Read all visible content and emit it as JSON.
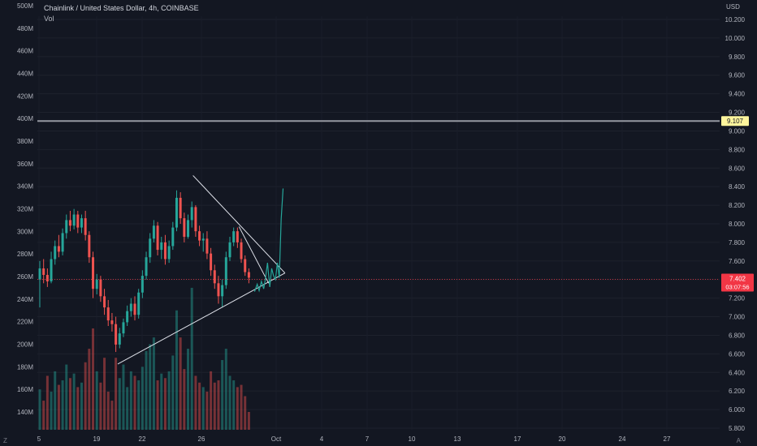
{
  "header": {
    "symbol_line": "Chainlink / United States Dollar, 4h, COINBASE",
    "indicator": "Vol"
  },
  "price_axis": {
    "currency": "USD",
    "ticks": [
      "10.200",
      "10.000",
      "9.800",
      "9.600",
      "9.400",
      "9.200",
      "9.000",
      "8.800",
      "8.600",
      "8.400",
      "8.200",
      "8.000",
      "7.800",
      "7.600",
      "7.400",
      "7.200",
      "7.000",
      "6.800",
      "6.600",
      "6.400",
      "6.200",
      "6.000",
      "5.800"
    ]
  },
  "volume_axis": {
    "ticks": [
      "500M",
      "480M",
      "460M",
      "440M",
      "420M",
      "400M",
      "380M",
      "360M",
      "340M",
      "320M",
      "300M",
      "280M",
      "260M",
      "240M",
      "220M",
      "200M",
      "180M",
      "160M",
      "140M"
    ]
  },
  "time_axis": {
    "ticks": [
      "5",
      "19",
      "22",
      "26",
      "Oct",
      "4",
      "7",
      "10",
      "13",
      "17",
      "20",
      "24",
      "27"
    ]
  },
  "markers": {
    "level_label": "9.107",
    "last_price": "7.402",
    "countdown": "03:07:56"
  },
  "corner_left": "Z",
  "corner_right": "A",
  "colors": {
    "background": "#131722",
    "up": "#26a69a",
    "down": "#ef5350",
    "drawing": "#e0e3eb",
    "level_line": "#9598a1",
    "level_badge": "#fff59d",
    "price_badge": "#f23645",
    "projection": "#26a69a"
  },
  "chart_data": {
    "type": "candlestick",
    "symbol": "Chainlink / United States Dollar",
    "interval": "4h",
    "exchange": "COINBASE",
    "price_range": [
      5.7,
      10.4
    ],
    "volume_range": [
      120,
      500
    ],
    "volume_unit": "M",
    "horizontal_level": 9.107,
    "last_price": 7.402,
    "trendlines": [
      {
        "name": "triangle-upper",
        "from": [
          40.3,
          8.52
        ],
        "to": [
          64.5,
          7.47
        ]
      },
      {
        "name": "triangle-lower",
        "from": [
          20.5,
          6.49
        ],
        "to": [
          64.5,
          7.47
        ]
      },
      {
        "name": "inner-upper",
        "from": [
          52.4,
          7.97
        ],
        "to": [
          60.2,
          7.36
        ]
      }
    ],
    "projection_path": [
      [
        56.5,
        7.27
      ],
      [
        57.2,
        7.35
      ],
      [
        57.7,
        7.28
      ],
      [
        58.3,
        7.38
      ],
      [
        58.9,
        7.3
      ],
      [
        59.4,
        7.42
      ],
      [
        59.9,
        7.58
      ],
      [
        60.5,
        7.32
      ],
      [
        61.0,
        7.52
      ],
      [
        61.5,
        7.44
      ],
      [
        62.0,
        7.4
      ],
      [
        62.5,
        7.58
      ],
      [
        63.0,
        7.42
      ],
      [
        63.5,
        8.05
      ],
      [
        64.0,
        8.38
      ]
    ],
    "candles_ohlc": [
      [
        0,
        7.4,
        7.6,
        7.1,
        7.52
      ],
      [
        1,
        7.52,
        7.62,
        7.36,
        7.45
      ],
      [
        2,
        7.45,
        7.52,
        7.32,
        7.38
      ],
      [
        3,
        7.38,
        7.7,
        7.36,
        7.62
      ],
      [
        4,
        7.62,
        7.82,
        7.56,
        7.76
      ],
      [
        5,
        7.76,
        7.88,
        7.64,
        7.7
      ],
      [
        6,
        7.7,
        7.95,
        7.66,
        7.9
      ],
      [
        7,
        7.9,
        8.1,
        7.84,
        8.04
      ],
      [
        8,
        8.04,
        8.14,
        7.92,
        7.98
      ],
      [
        9,
        7.98,
        8.16,
        7.94,
        8.1
      ],
      [
        10,
        8.1,
        8.14,
        7.9,
        7.96
      ],
      [
        11,
        7.96,
        8.1,
        7.9,
        8.06
      ],
      [
        12,
        8.06,
        8.14,
        7.82,
        7.88
      ],
      [
        13,
        7.88,
        7.92,
        7.58,
        7.64
      ],
      [
        14,
        7.64,
        7.7,
        7.2,
        7.3
      ],
      [
        15,
        7.3,
        7.46,
        7.24,
        7.4
      ],
      [
        16,
        7.4,
        7.44,
        7.16,
        7.22
      ],
      [
        17,
        7.22,
        7.3,
        7.02,
        7.1
      ],
      [
        18,
        7.1,
        7.18,
        6.9,
        6.96
      ],
      [
        19,
        6.96,
        7.04,
        6.84,
        6.92
      ],
      [
        20,
        6.92,
        7.0,
        6.62,
        6.7
      ],
      [
        21,
        6.7,
        6.88,
        6.66,
        6.82
      ],
      [
        22,
        6.82,
        6.98,
        6.78,
        6.94
      ],
      [
        23,
        6.94,
        7.12,
        6.9,
        7.06
      ],
      [
        24,
        7.06,
        7.2,
        7.0,
        7.14
      ],
      [
        25,
        7.14,
        7.22,
        6.96,
        7.02
      ],
      [
        26,
        7.02,
        7.3,
        6.98,
        7.26
      ],
      [
        27,
        7.26,
        7.5,
        7.2,
        7.44
      ],
      [
        28,
        7.44,
        7.7,
        7.4,
        7.64
      ],
      [
        29,
        7.64,
        7.9,
        7.58,
        7.84
      ],
      [
        30,
        7.84,
        8.04,
        7.8,
        7.98
      ],
      [
        31,
        7.98,
        8.02,
        7.66,
        7.72
      ],
      [
        32,
        7.72,
        7.86,
        7.62,
        7.8
      ],
      [
        33,
        7.8,
        7.88,
        7.56,
        7.62
      ],
      [
        34,
        7.62,
        7.82,
        7.58,
        7.76
      ],
      [
        35,
        7.76,
        8.02,
        7.72,
        7.96
      ],
      [
        36,
        7.96,
        8.36,
        7.92,
        8.28
      ],
      [
        37,
        8.28,
        8.34,
        8.0,
        8.06
      ],
      [
        38,
        8.06,
        8.12,
        7.8,
        7.86
      ],
      [
        39,
        7.86,
        8.1,
        7.84,
        8.04
      ],
      [
        40,
        8.04,
        8.24,
        7.96,
        8.18
      ],
      [
        41,
        8.18,
        8.2,
        7.86,
        7.92
      ],
      [
        42,
        7.92,
        7.98,
        7.76,
        7.82
      ],
      [
        43,
        7.82,
        7.9,
        7.7,
        7.84
      ],
      [
        44,
        7.84,
        7.92,
        7.62,
        7.68
      ],
      [
        45,
        7.68,
        7.74,
        7.44,
        7.5
      ],
      [
        46,
        7.5,
        7.56,
        7.3,
        7.36
      ],
      [
        47,
        7.36,
        7.44,
        7.14,
        7.22
      ],
      [
        48,
        7.22,
        7.4,
        7.1,
        7.34
      ],
      [
        49,
        7.34,
        7.7,
        7.3,
        7.64
      ],
      [
        50,
        7.64,
        7.86,
        7.6,
        7.8
      ],
      [
        51,
        7.8,
        7.96,
        7.76,
        7.92
      ],
      [
        52,
        7.92,
        7.96,
        7.74,
        7.8
      ],
      [
        53,
        7.8,
        7.84,
        7.58,
        7.62
      ],
      [
        54,
        7.62,
        7.66,
        7.44,
        7.48
      ],
      [
        55,
        7.48,
        7.52,
        7.36,
        7.42
      ]
    ],
    "volumes": [
      160,
      150,
      172,
      158,
      176,
      164,
      168,
      182,
      170,
      174,
      162,
      166,
      184,
      196,
      214,
      176,
      166,
      188,
      158,
      150,
      188,
      170,
      182,
      162,
      176,
      172,
      168,
      180,
      194,
      200,
      206,
      168,
      174,
      170,
      176,
      190,
      230,
      206,
      178,
      196,
      250,
      172,
      166,
      162,
      158,
      176,
      166,
      168,
      186,
      196,
      172,
      168,
      162,
      164,
      154,
      140
    ]
  }
}
